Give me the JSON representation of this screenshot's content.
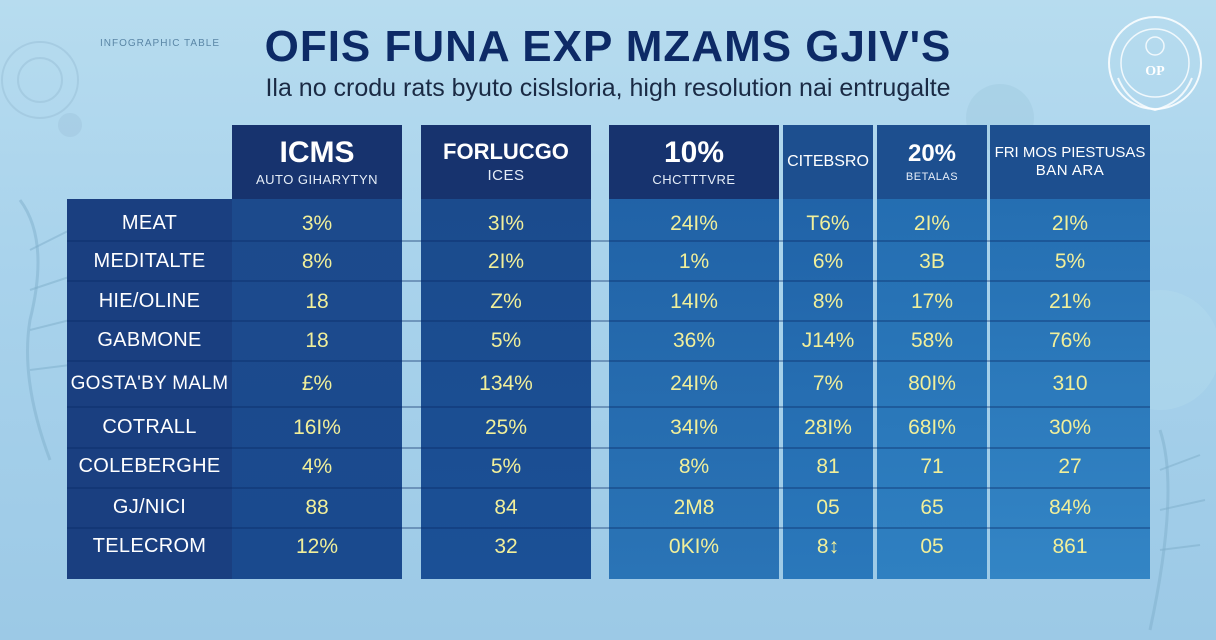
{
  "title": "OFIS FUNA EXP MZAMS  GJIV'S",
  "subtitle": "Ila no crodu rats byuto cislsloria, high resolution nai entrugalte",
  "corner_text": "INFOGRAPHIC TABLE",
  "emblem": {
    "text": "OP"
  },
  "colors": {
    "background": "#a9d3ec",
    "title": "#0d2a66",
    "header_dark": "#17336e",
    "header_mid": "#1d4f8f",
    "row_label_panel": "#1a3f80",
    "value_yellow": "#f1ef9a"
  },
  "columns": [
    {
      "main": "ICMS",
      "sub": "AUTO GIHARYTYN"
    },
    {
      "main": "FORLUCGO",
      "sub": "ICES"
    },
    {
      "main": "10%",
      "sub": "CHCTTTVRE"
    },
    {
      "main": "CITEBSRO",
      "sub": ""
    },
    {
      "main": "20%",
      "sub": "BETALAS"
    },
    {
      "main": "FRI MOS PIESTUSAS",
      "sub": "BAN ARA"
    }
  ],
  "rows": [
    {
      "label": "MEAT",
      "values": [
        "3%",
        "3I%",
        "24I%",
        "T6%",
        "2I%",
        "2I%"
      ]
    },
    {
      "label": "MEDITALTE",
      "values": [
        "8%",
        "2I%",
        "1%",
        "6%",
        "3B",
        "5%"
      ]
    },
    {
      "label": "HIE/OLINE",
      "values": [
        "18",
        "Z%",
        "14I%",
        "8%",
        "17%",
        "21%"
      ]
    },
    {
      "label": "GABMONE",
      "values": [
        "18",
        "5%",
        "36%",
        "J14%",
        "58%",
        "76%"
      ]
    },
    {
      "label": "GOSTA'BY MALM",
      "values": [
        "£%",
        "134%",
        "24I%",
        "7%",
        "80I%",
        "310"
      ]
    },
    {
      "label": "COTRALL",
      "values": [
        "16I%",
        "25%",
        "34I%",
        "28I%",
        "68I%",
        "30%"
      ]
    },
    {
      "label": "COLEBERGHE",
      "values": [
        "4%",
        "5%",
        "8%",
        "81",
        "71",
        "27"
      ]
    },
    {
      "label": "GJ/NICI",
      "values": [
        "88",
        "84",
        "2M8",
        "05",
        "65",
        "84%"
      ]
    },
    {
      "label": "TELECROM",
      "values": [
        "12%",
        "32",
        "0KI%",
        "8↕",
        "05",
        "861"
      ]
    }
  ]
}
